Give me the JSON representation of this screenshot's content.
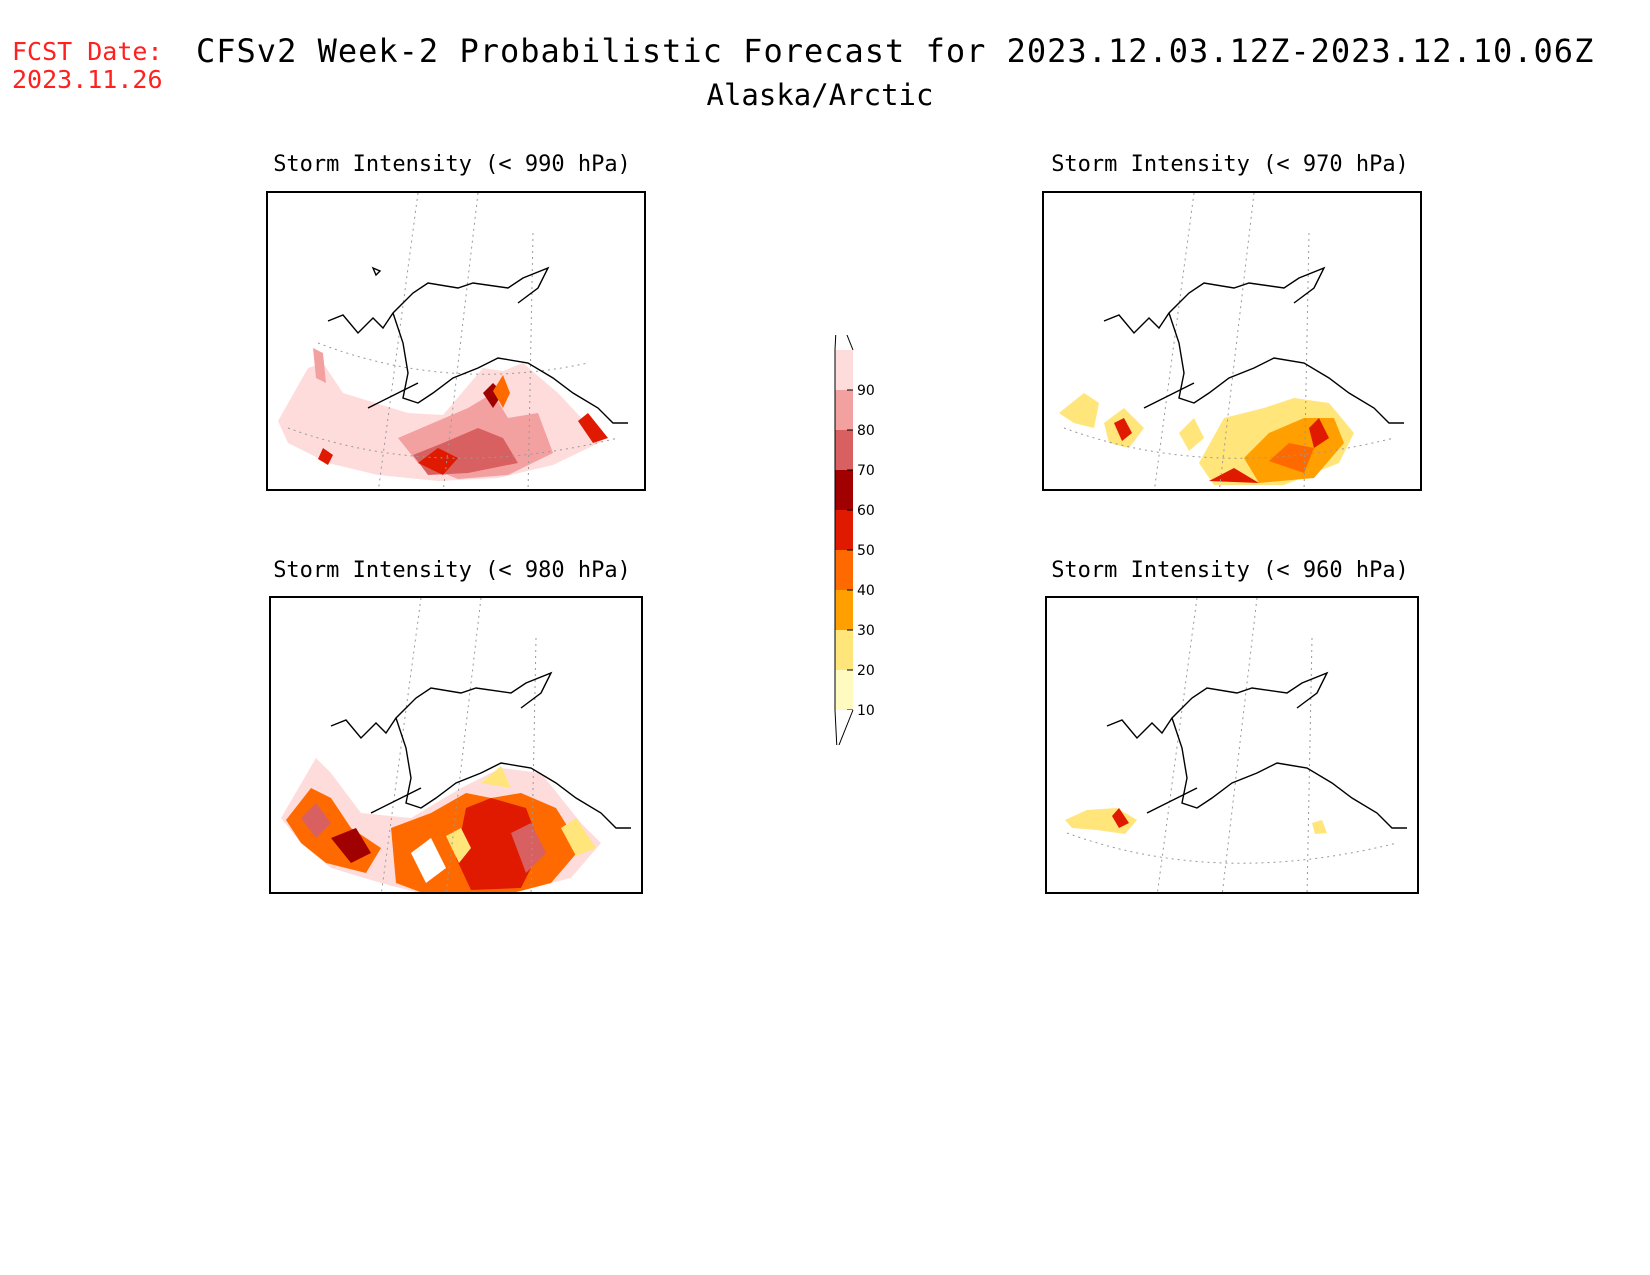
{
  "header": {
    "fcst_label": "FCST Date:",
    "fcst_date": "2023.11.26",
    "title": "CFSv2 Week-2 Probabilistic Forecast for 2023.12.03.12Z-2023.12.10.06Z",
    "subtitle": "Alaska/Arctic"
  },
  "panels": [
    {
      "title": "Storm Intensity (< 990 hPa)"
    },
    {
      "title": "Storm Intensity (< 970 hPa)"
    },
    {
      "title": "Storm Intensity (< 980 hPa)"
    },
    {
      "title": "Storm Intensity (< 960 hPa)"
    }
  ],
  "legend": {
    "levels": [
      {
        "label": "10",
        "color": "#fffbc0"
      },
      {
        "label": "20",
        "color": "#ffe57a"
      },
      {
        "label": "30",
        "color": "#ffa000"
      },
      {
        "label": "40",
        "color": "#ff6a00"
      },
      {
        "label": "50",
        "color": "#e01a00"
      },
      {
        "label": "60",
        "color": "#a00000"
      },
      {
        "label": "70",
        "color": "#d96060"
      },
      {
        "label": "80",
        "color": "#f2a0a0"
      },
      {
        "label": "90",
        "color": "#ffdcdc"
      }
    ]
  },
  "colors": {
    "fcst_text": "#ff2020",
    "coastline": "#000000",
    "graticule": "#999999"
  }
}
